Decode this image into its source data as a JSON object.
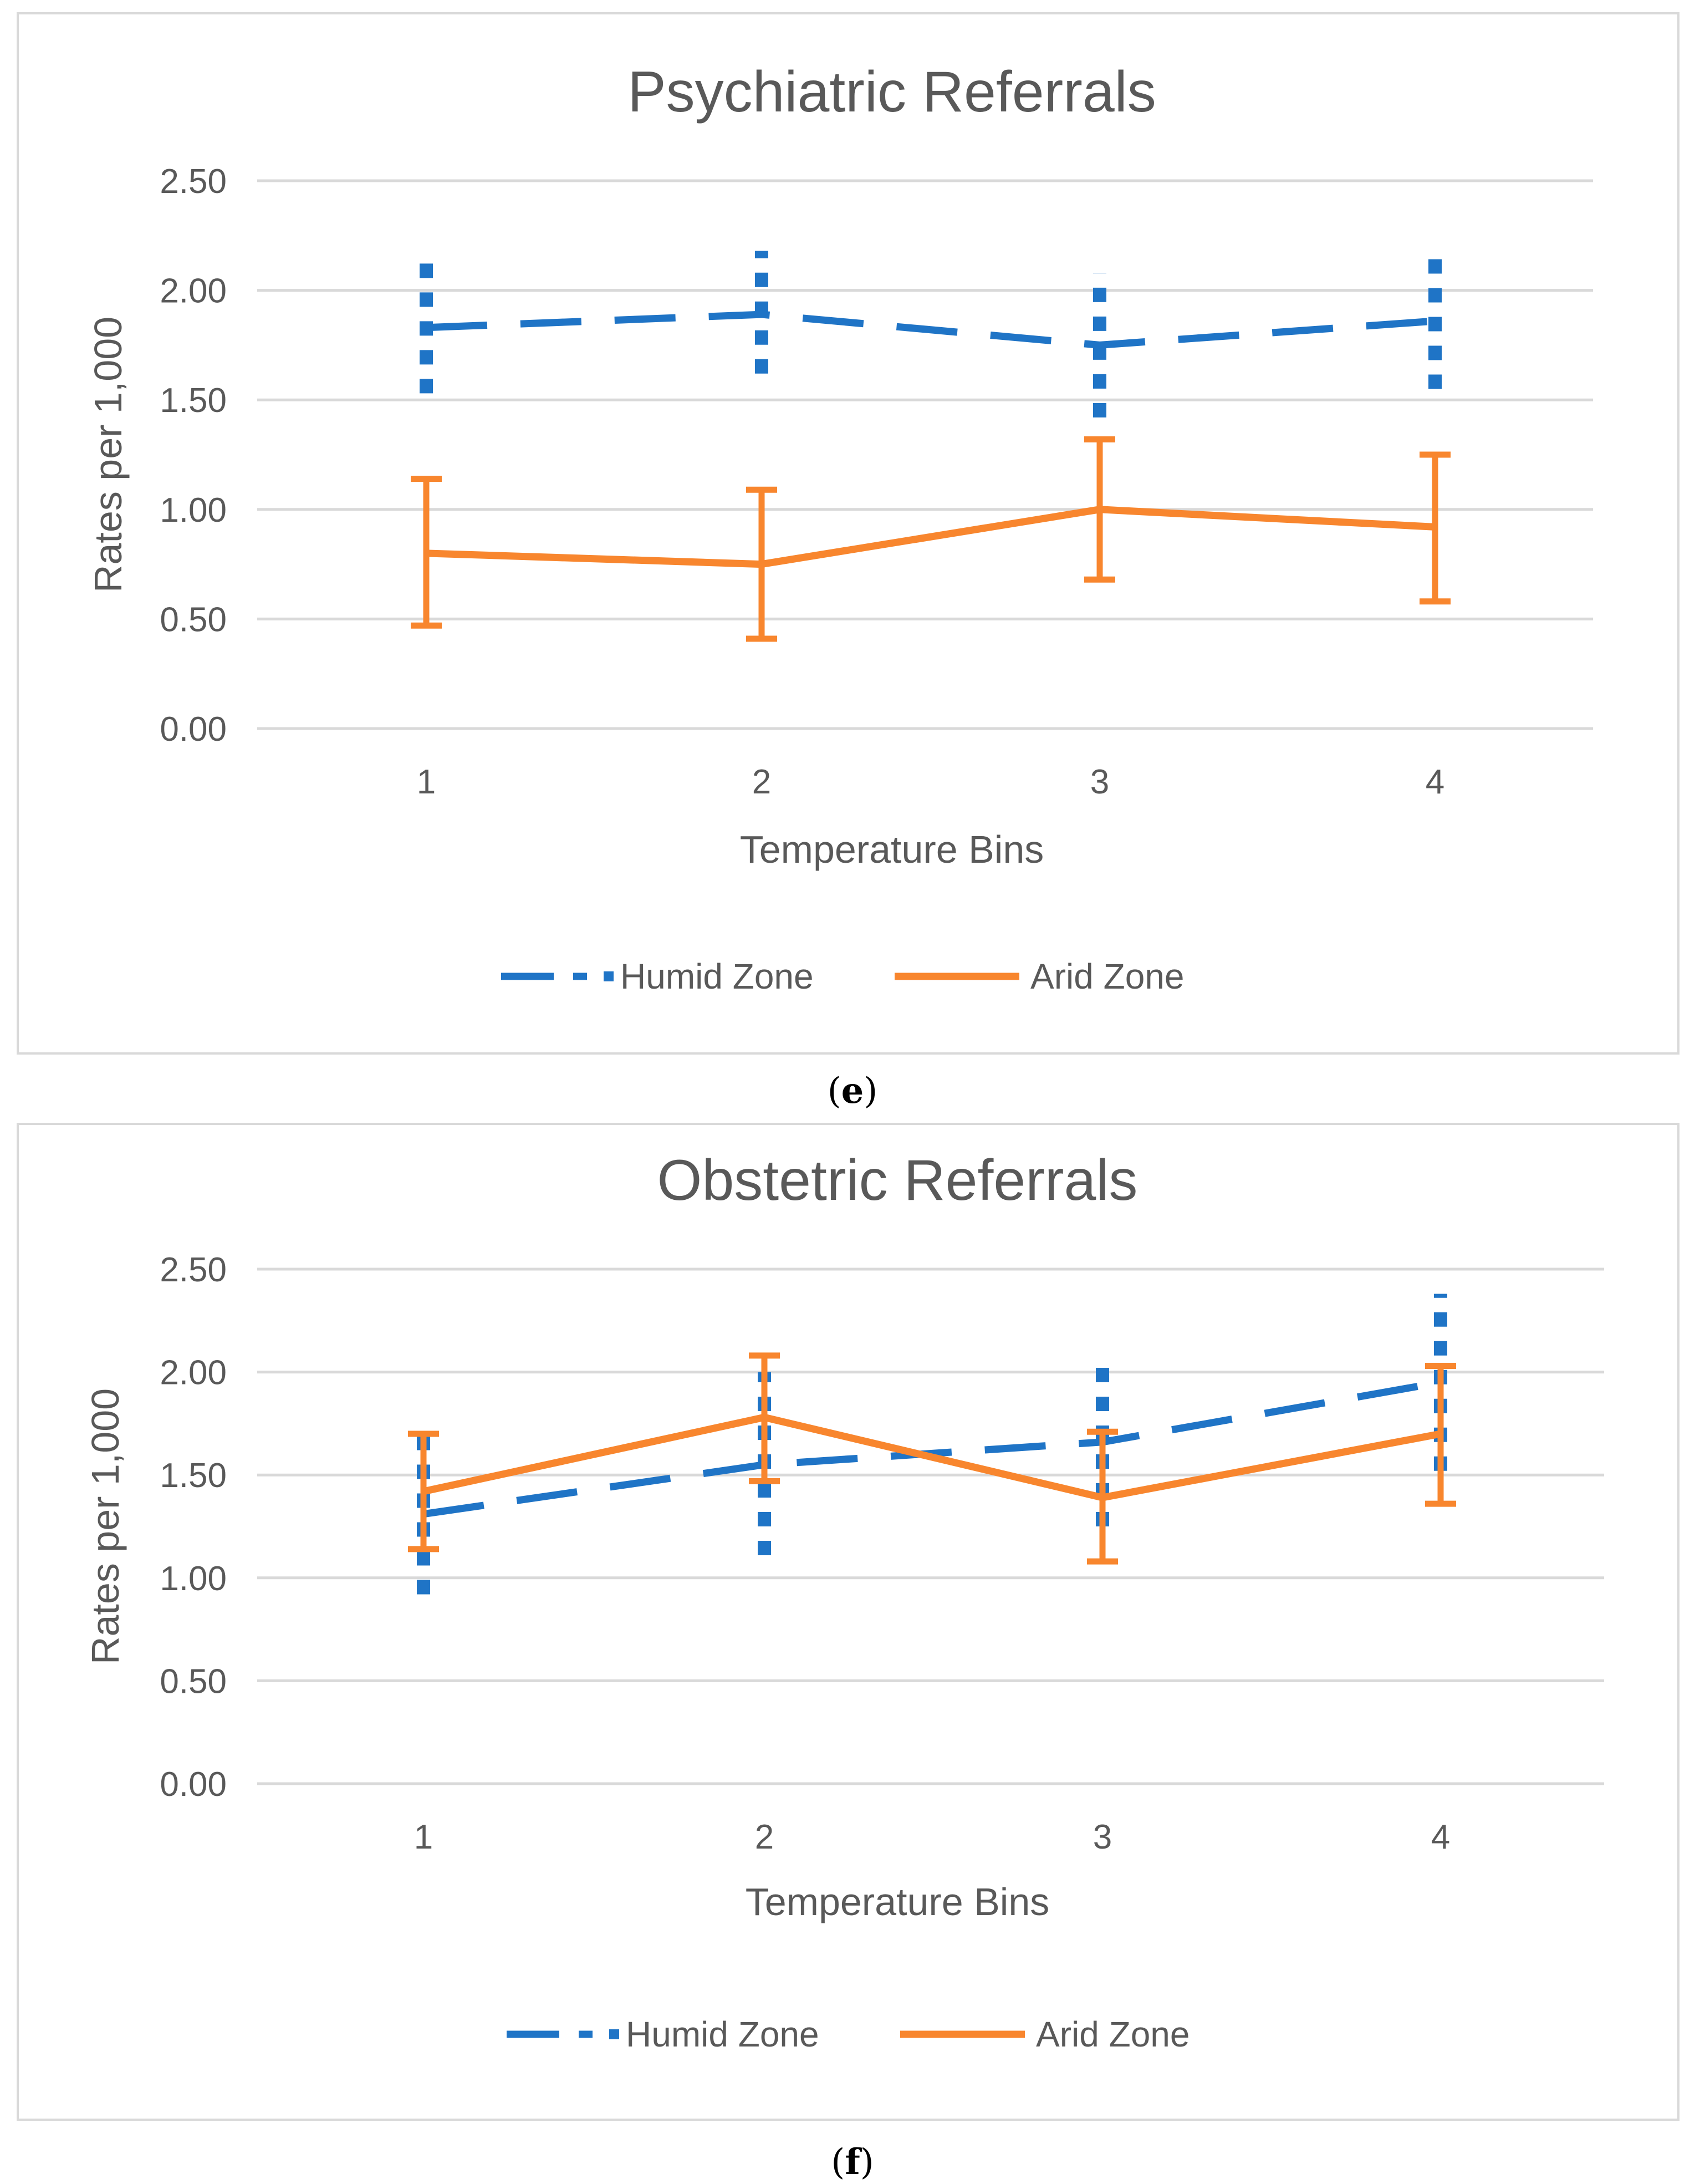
{
  "chart_data": [
    {
      "type": "line",
      "panel_label": "e",
      "title": "Psychiatric Referrals",
      "xlabel": "Temperature Bins",
      "ylabel": "Rates per 1,000",
      "categories": [
        "1",
        "2",
        "3",
        "4"
      ],
      "ylim": [
        0,
        2.5
      ],
      "yticks": [
        "0.00",
        "0.50",
        "1.00",
        "1.50",
        "2.00",
        "2.50"
      ],
      "grid": true,
      "legend_position": "bottom",
      "series": [
        {
          "name": "Humid Zone",
          "color": "#1f74c6",
          "style": "dashed",
          "values": [
            1.83,
            1.89,
            1.75,
            1.86
          ],
          "error_low": [
            1.53,
            1.62,
            1.42,
            1.55
          ],
          "error_high": [
            2.13,
            2.18,
            2.08,
            2.18
          ]
        },
        {
          "name": "Arid Zone",
          "color": "#f8862e",
          "style": "solid",
          "values": [
            0.8,
            0.75,
            1.0,
            0.92
          ],
          "error_low": [
            0.47,
            0.41,
            0.68,
            0.58
          ],
          "error_high": [
            1.14,
            1.09,
            1.32,
            1.25
          ]
        }
      ]
    },
    {
      "type": "line",
      "panel_label": "f",
      "title": "Obstetric Referrals",
      "xlabel": "Temperature Bins",
      "ylabel": "Rates per 1,000",
      "categories": [
        "1",
        "2",
        "3",
        "4"
      ],
      "ylim": [
        0,
        2.5
      ],
      "yticks": [
        "0.00",
        "0.50",
        "1.00",
        "1.50",
        "2.00",
        "2.50"
      ],
      "grid": true,
      "legend_position": "bottom",
      "series": [
        {
          "name": "Humid Zone",
          "color": "#1f74c6",
          "style": "dashed",
          "values": [
            1.31,
            1.55,
            1.66,
            1.95
          ],
          "error_low": [
            0.92,
            1.11,
            1.25,
            1.52
          ],
          "error_high": [
            1.7,
            2.0,
            2.05,
            2.38
          ]
        },
        {
          "name": "Arid Zone",
          "color": "#f8862e",
          "style": "solid",
          "values": [
            1.42,
            1.78,
            1.39,
            1.7
          ],
          "error_low": [
            1.14,
            1.47,
            1.08,
            1.36
          ],
          "error_high": [
            1.7,
            2.08,
            1.71,
            2.03
          ]
        }
      ]
    }
  ]
}
